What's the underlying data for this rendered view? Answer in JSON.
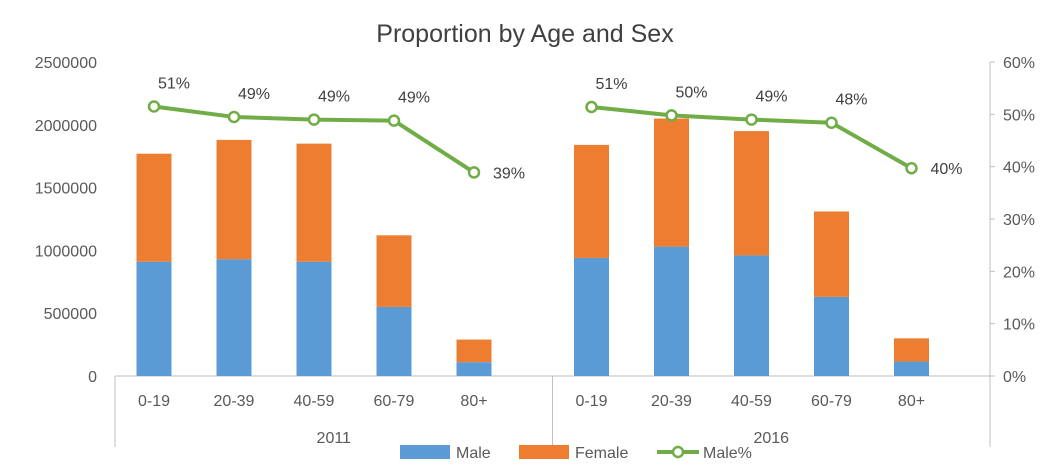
{
  "chart_data": {
    "type": "bar",
    "title": "Proportion by Age and Sex",
    "stacked": true,
    "groups": [
      "2011",
      "2016"
    ],
    "categories": [
      "0-19",
      "20-39",
      "40-59",
      "60-79",
      "80+"
    ],
    "series": [
      {
        "name": "Male",
        "kind": "bar",
        "color": "#5B9BD5",
        "values": [
          [
            910000,
            930000,
            910000,
            550000,
            110000
          ],
          [
            940000,
            1030000,
            960000,
            630000,
            115000
          ]
        ]
      },
      {
        "name": "Female",
        "kind": "bar",
        "color": "#ED7D31",
        "values": [
          [
            860000,
            950000,
            940000,
            570000,
            180000
          ],
          [
            900000,
            1020000,
            990000,
            680000,
            185000
          ]
        ]
      },
      {
        "name": "Male%",
        "kind": "line",
        "axis": "right",
        "color": "#70AD47",
        "values": [
          [
            51.5,
            49.5,
            49.0,
            48.8,
            38.9
          ],
          [
            51.4,
            49.8,
            49.0,
            48.4,
            39.7
          ]
        ],
        "labels": [
          [
            "51%",
            "49%",
            "49%",
            "49%",
            "39%"
          ],
          [
            "51%",
            "50%",
            "49%",
            "48%",
            "40%"
          ]
        ]
      }
    ],
    "y_left": {
      "ylim": [
        0,
        2500000
      ],
      "ticks": [
        "0",
        "500000",
        "1000000",
        "1500000",
        "2000000",
        "2500000"
      ]
    },
    "y_right": {
      "ylim": [
        0,
        60
      ],
      "ticks": [
        "0%",
        "10%",
        "20%",
        "30%",
        "40%",
        "50%",
        "60%"
      ]
    },
    "grid": false,
    "legend": {
      "position": "bottom",
      "entries": [
        "Male",
        "Female",
        "Male%"
      ]
    }
  }
}
